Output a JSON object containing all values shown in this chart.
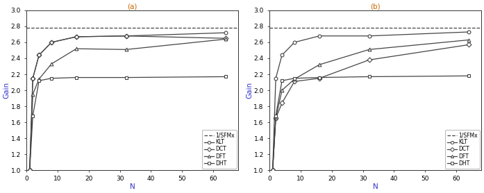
{
  "subplot_a": {
    "title": "(a)",
    "N": [
      1,
      2,
      4,
      8,
      16,
      32,
      64
    ],
    "KLT": [
      1.0,
      2.15,
      2.44,
      2.6,
      2.67,
      2.68,
      2.72
    ],
    "DCT": [
      1.0,
      2.15,
      2.44,
      2.6,
      2.67,
      2.68,
      2.65
    ],
    "DFT": [
      1.0,
      1.95,
      2.14,
      2.33,
      2.52,
      2.51,
      2.64
    ],
    "DHT": [
      1.0,
      1.68,
      2.12,
      2.15,
      2.16,
      2.16,
      2.17
    ],
    "hline": 2.785
  },
  "subplot_b": {
    "title": "(b)",
    "N": [
      1,
      2,
      4,
      8,
      16,
      32,
      64
    ],
    "KLT": [
      1.0,
      2.15,
      2.44,
      2.6,
      2.68,
      2.68,
      2.73
    ],
    "DCT": [
      1.0,
      1.65,
      1.84,
      2.11,
      2.15,
      2.38,
      2.57
    ],
    "DFT": [
      1.0,
      1.65,
      2.0,
      2.14,
      2.32,
      2.51,
      2.63
    ],
    "DHT": [
      1.0,
      1.68,
      2.12,
      2.15,
      2.16,
      2.17,
      2.18
    ],
    "hline": 2.785
  },
  "xlim": [
    0,
    68
  ],
  "ylim": [
    1.0,
    3.0
  ],
  "xlabel": "N",
  "ylabel": "Gain",
  "yticks": [
    1.0,
    1.2,
    1.4,
    1.6,
    1.8,
    2.0,
    2.2,
    2.4,
    2.6,
    2.8,
    3.0
  ],
  "xticks": [
    0,
    10,
    20,
    30,
    40,
    50,
    60
  ],
  "line_color": "#444444",
  "title_color": "#cc6600",
  "axis_label_color": "#3333cc",
  "tick_color": "#000000",
  "figsize": [
    6.97,
    2.78
  ],
  "dpi": 100
}
